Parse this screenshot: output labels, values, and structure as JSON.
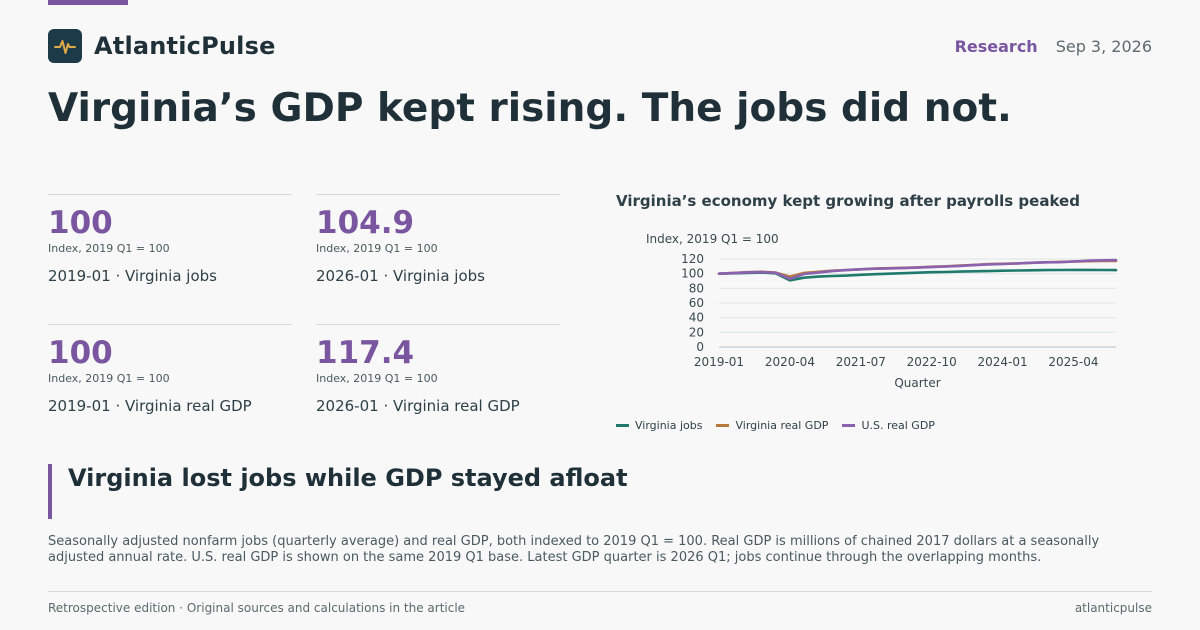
{
  "brand": {
    "name": "AtlanticPulse",
    "logo_icon": "pulse-icon"
  },
  "header": {
    "section": "Research",
    "date": "Sep 3, 2026"
  },
  "headline": "Virginia’s GDP kept rising. The jobs did not.",
  "kpis": [
    {
      "value": "100",
      "unit": "Index, 2019 Q1 = 100",
      "label": "2019-01 · Virginia jobs"
    },
    {
      "value": "104.9",
      "unit": "Index, 2019 Q1 = 100",
      "label": "2026-01 · Virginia jobs"
    },
    {
      "value": "100",
      "unit": "Index, 2019 Q1 = 100",
      "label": "2019-01 · Virginia real GDP"
    },
    {
      "value": "117.4",
      "unit": "Index, 2019 Q1 = 100",
      "label": "2026-01 · Virginia real GDP"
    }
  ],
  "chart_data": {
    "type": "line",
    "title": "Virginia’s economy kept growing after payrolls peaked",
    "ylabel": "Index, 2019 Q1 = 100",
    "xlabel": "Quarter",
    "ylim": [
      0,
      120
    ],
    "yticks": [
      0,
      20,
      40,
      60,
      80,
      100,
      120
    ],
    "xticks": [
      "2019-01",
      "2020-04",
      "2021-07",
      "2022-10",
      "2024-01",
      "2025-04"
    ],
    "x": [
      "2019-01",
      "2019-04",
      "2019-07",
      "2019-10",
      "2020-01",
      "2020-04",
      "2020-07",
      "2020-10",
      "2021-01",
      "2021-04",
      "2021-07",
      "2021-10",
      "2022-01",
      "2022-04",
      "2022-07",
      "2022-10",
      "2023-01",
      "2023-04",
      "2023-07",
      "2023-10",
      "2024-01",
      "2024-04",
      "2024-07",
      "2024-10",
      "2025-01",
      "2025-04",
      "2025-07",
      "2025-10",
      "2026-01"
    ],
    "grid": true,
    "legend": "bottom-left",
    "series": [
      {
        "name": "Virginia jobs",
        "color": "#1f7a6c",
        "values": [
          100,
          100.5,
          101,
          101.5,
          100.5,
          91,
          94.5,
          96,
          96.8,
          97.3,
          98.5,
          99.3,
          100,
          100.6,
          101.3,
          102,
          102.3,
          102.8,
          103.2,
          103.5,
          104,
          104.3,
          104.6,
          104.8,
          105,
          105.2,
          105.2,
          105,
          104.9
        ]
      },
      {
        "name": "Virginia real GDP",
        "color": "#b5793a",
        "values": [
          100,
          101,
          102,
          102.5,
          101.5,
          96,
          101,
          102.5,
          104,
          105,
          106,
          107,
          107.5,
          108,
          108.5,
          109.5,
          110,
          111,
          112,
          113,
          113.5,
          114,
          114.8,
          115.5,
          116,
          116.5,
          117,
          117.3,
          117.4
        ]
      },
      {
        "name": "U.S. real GDP",
        "color": "#8a62b0",
        "values": [
          100,
          100.8,
          101.7,
          102.2,
          101.2,
          93,
          99.5,
          101.5,
          103.5,
          104.8,
          106,
          106.8,
          107.2,
          107.6,
          108.3,
          109,
          109.8,
          110.6,
          111.7,
          112.6,
          113.2,
          113.9,
          114.8,
          115.5,
          115.6,
          116.6,
          117.7,
          118.2,
          118.5
        ]
      }
    ]
  },
  "callout": {
    "title": "Virginia lost jobs while GDP stayed afloat"
  },
  "note": "Seasonally adjusted nonfarm jobs (quarterly average) and real GDP, both indexed to 2019 Q1 = 100. Real GDP is millions of chained 2017 dollars at a seasonally adjusted annual rate. U.S. real GDP is shown on the same 2019 Q1 base. Latest GDP quarter is 2026 Q1; jobs continue through the overlapping months.",
  "footer": {
    "left": "Retrospective edition · Original sources and calculations in the article",
    "right": "atlanticpulse"
  }
}
